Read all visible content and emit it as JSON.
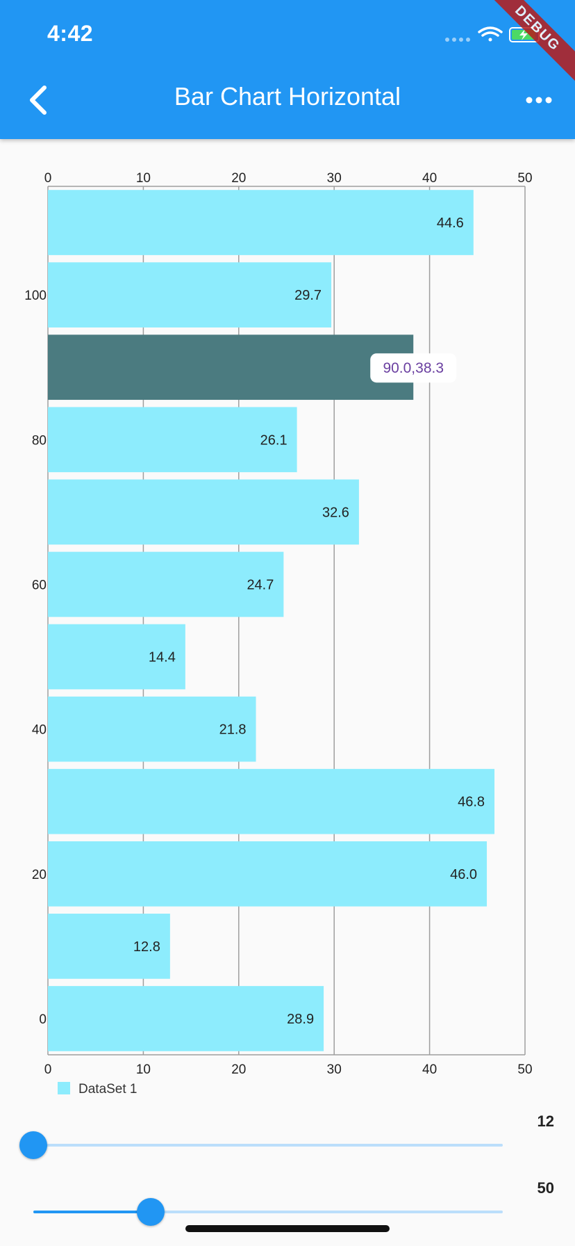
{
  "status_bar": {
    "time": "4:42",
    "debug_label": "DEBUG"
  },
  "app_bar": {
    "title": "Bar Chart Horizontal",
    "back_icon": "chevron-left-icon",
    "menu_icon": "more-horizontal-icon"
  },
  "colors": {
    "primary": "#2196f3",
    "bar": "#8decfd",
    "bar_highlight": "#4b7b80",
    "tooltip_text": "#6a3fa0"
  },
  "chart_data": {
    "type": "bar",
    "orientation": "horizontal",
    "x": [
      0,
      10,
      20,
      30,
      40,
      50,
      60,
      70,
      80,
      90,
      100,
      110
    ],
    "values": [
      28.9,
      12.8,
      46.0,
      46.8,
      21.8,
      14.4,
      24.7,
      32.6,
      26.1,
      38.3,
      29.7,
      44.6
    ],
    "value_labels": [
      "28.9",
      "12.8",
      "46.0",
      "46.8",
      "21.8",
      "14.4",
      "24.7",
      "32.6",
      "26.1",
      "",
      "29.7",
      "44.6"
    ],
    "highlighted_index": 9,
    "tooltip": "90.0,38.3",
    "value_axis": {
      "min": 0,
      "max": 50,
      "ticks": [
        0,
        10,
        20,
        30,
        40,
        50
      ],
      "position": "top-and-bottom"
    },
    "category_axis": {
      "ticks": [
        0,
        20,
        40,
        60,
        80,
        100
      ],
      "range": [
        -5,
        115
      ]
    },
    "grid": true,
    "legend": {
      "entries": [
        "DataSet 1"
      ],
      "placement": "bottom-left"
    }
  },
  "sliders": [
    {
      "value": 12,
      "label": "12",
      "fraction": 0.0
    },
    {
      "value": 50,
      "label": "50",
      "fraction": 0.25
    }
  ]
}
